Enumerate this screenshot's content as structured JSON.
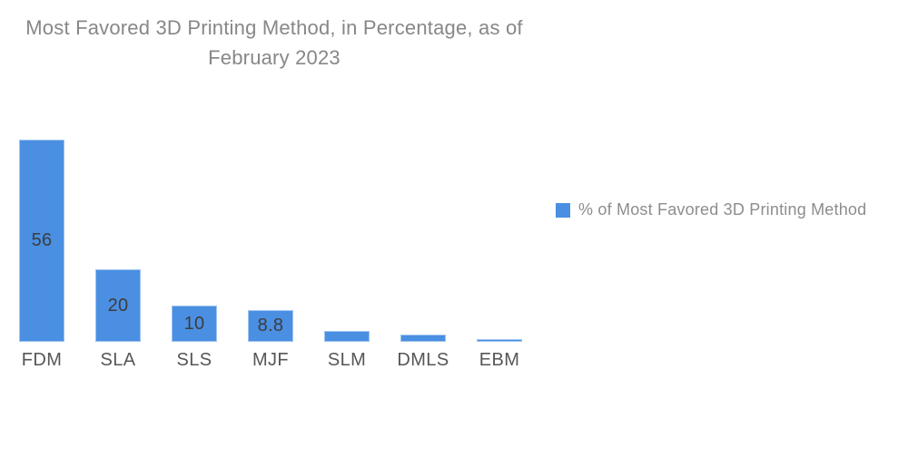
{
  "chart": {
    "title_lines": [
      "Most Favored 3D Printing Method, in Percentage, as of",
      "February 2023"
    ],
    "legend": {
      "label": "% of Most Favored 3D Printing Method"
    },
    "colors": {
      "bar_fill": "#4a8fe2",
      "bar_border": "#9fc4f0",
      "title_text": "#878787",
      "axis_label_text": "#565656",
      "value_label_text": "#3d3d3d",
      "legend_text": "#8d8d8d"
    }
  },
  "chart_data": {
    "type": "bar",
    "title": "Most Favored 3D Printing Method, in Percentage, as of February 2023",
    "categories": [
      "FDM",
      "SLA",
      "SLS",
      "MJF",
      "SLM",
      "DMLS",
      "EBM"
    ],
    "values": [
      56,
      20,
      10,
      8.8,
      3,
      2,
      0.8
    ],
    "data_labels": [
      "56",
      "20",
      "10",
      "8.8",
      "",
      "",
      ""
    ],
    "series": [
      {
        "name": "% of Most Favored 3D Printing Method",
        "values": [
          56,
          20,
          10,
          8.8,
          3,
          2,
          0.8
        ]
      }
    ],
    "xlabel": "",
    "ylabel": "",
    "ylim": [
      0,
      60
    ],
    "grid": false,
    "y_axis_visible": false,
    "legend_position": "right",
    "bar_color": "#4a8fe2",
    "bar_border_color": "#9fc4f0"
  }
}
